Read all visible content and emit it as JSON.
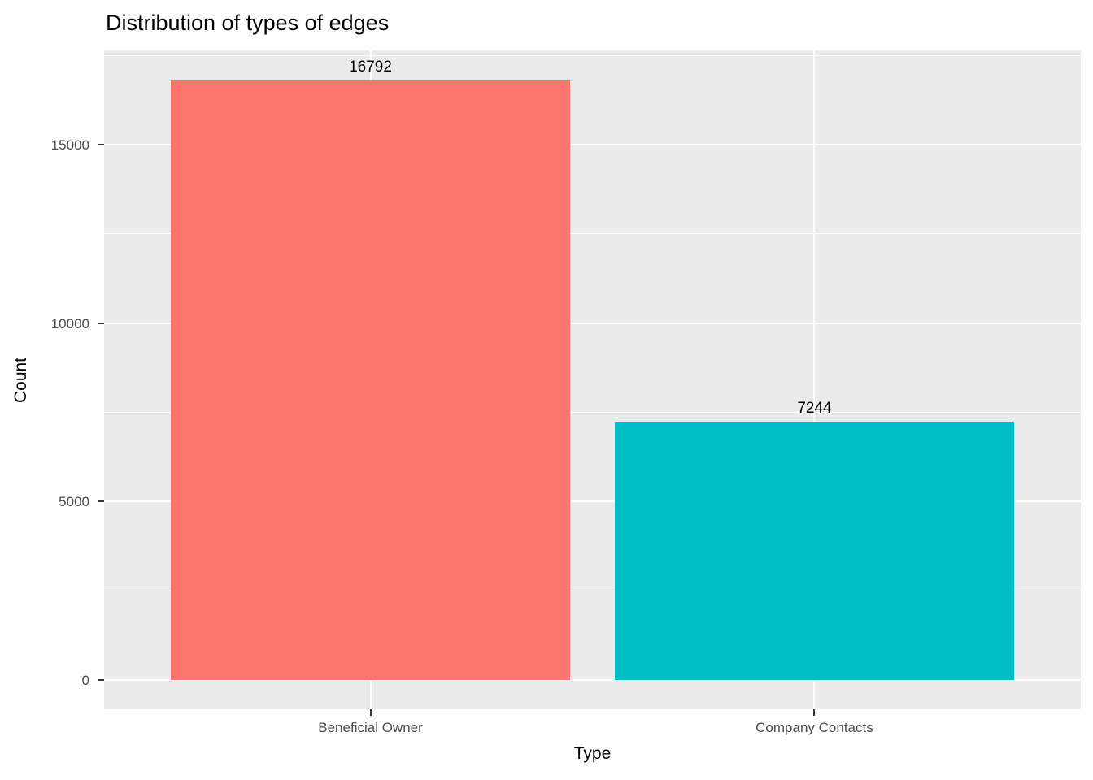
{
  "chart_data": {
    "type": "bar",
    "title": "Distribution of types of edges",
    "xlabel": "Type",
    "ylabel": "Count",
    "categories": [
      "Beneficial Owner",
      "Company Contacts"
    ],
    "values": [
      16792,
      7244
    ],
    "bar_labels": [
      "16792",
      "7244"
    ],
    "bar_colors": [
      "#F8766D",
      "#00BFC4"
    ],
    "ylim": [
      0,
      17640
    ],
    "yticks": [
      0,
      5000,
      10000,
      15000
    ],
    "ytick_labels": [
      "0",
      "5000",
      "10000",
      "15000"
    ],
    "yticks_minor": [
      2500,
      7500,
      12500,
      17500
    ],
    "grid": true,
    "legend": "none",
    "panel_background": "#EBEBEB",
    "gridline_color": "#FFFFFF",
    "tick_label_color": "#4D4D4D",
    "tick_mark_color": "#333333"
  }
}
